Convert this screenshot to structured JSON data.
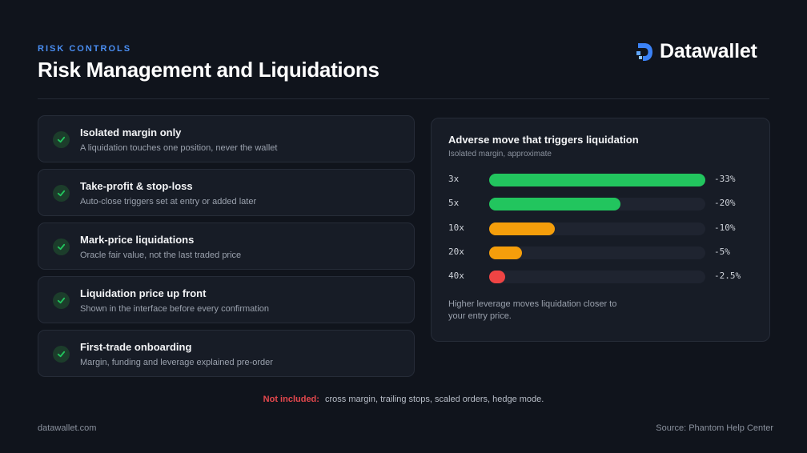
{
  "header": {
    "eyebrow": "RISK CONTROLS",
    "title": "Risk Management and Liquidations",
    "brand": "Datawallet"
  },
  "features": [
    {
      "title": "Isolated margin only",
      "desc": "A liquidation touches one position, never the wallet"
    },
    {
      "title": "Take-profit & stop-loss",
      "desc": "Auto-close triggers set at entry or added later"
    },
    {
      "title": "Mark-price liquidations",
      "desc": "Oracle fair value, not the last traded price"
    },
    {
      "title": "Liquidation price up front",
      "desc": "Shown in the interface before every confirmation"
    },
    {
      "title": "First-trade onboarding",
      "desc": "Margin, funding and leverage explained pre-order"
    }
  ],
  "chart_data": {
    "type": "bar",
    "orientation": "horizontal",
    "title": "Adverse move that triggers liquidation",
    "subtitle": "Isolated margin, approximate",
    "categories": [
      "3x",
      "5x",
      "10x",
      "20x",
      "40x"
    ],
    "values": [
      -33,
      -20,
      -10,
      -5,
      -2.5
    ],
    "value_labels": [
      "-33%",
      "-20%",
      "-10%",
      "-5%",
      "-2.5%"
    ],
    "bar_colors": [
      "#22c55e",
      "#22c55e",
      "#f59e0b",
      "#f59e0b",
      "#ef4444"
    ],
    "xlim": [
      0,
      33
    ],
    "grid": false,
    "note": "Higher leverage moves liquidation closer to your entry price."
  },
  "footnote": {
    "label": "Not included:",
    "text": "cross margin, trailing stops, scaled orders, hedge mode."
  },
  "footer": {
    "site": "datawallet.com",
    "source": "Source: Phantom Help Center"
  },
  "colors": {
    "background": "#10141c",
    "accent_blue": "#4a8ef2",
    "check_green": "#22c55e",
    "alert_red": "#e5484d"
  }
}
